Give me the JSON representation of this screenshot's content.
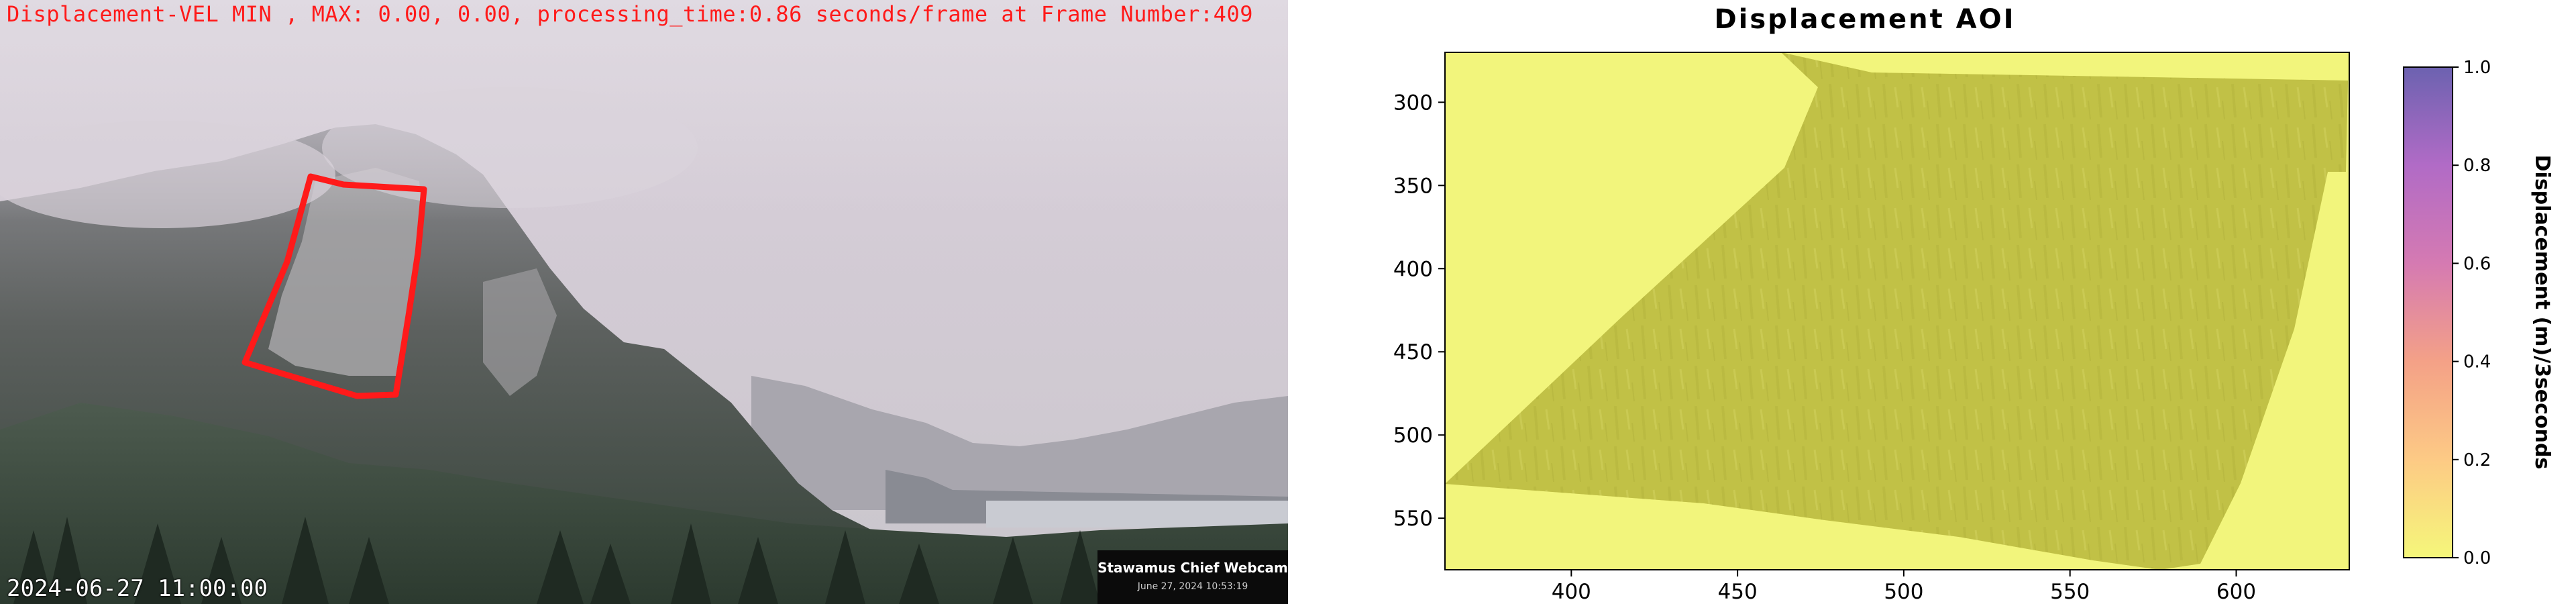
{
  "webcam": {
    "status_line": "Displacement-VEL MIN , MAX: 0.00, 0.00, processing_time:0.86 seconds/frame at Frame Number:409",
    "timestamp": "2024-06-27 11:00:00",
    "camera_name": "Stawamus Chief Webcam",
    "camera_date": "June 27, 2024 10:53:19",
    "roi_color": "#ff1a1a"
  },
  "plot": {
    "title": "Displacement AOI",
    "colorbar_label": "Displacement (m)/3seconds",
    "colors": {
      "background_field": "#f2f57c",
      "displacement_region": "#c2c246",
      "colormap": [
        "#f5f77a",
        "#fdca85",
        "#f4a187",
        "#d57ab2",
        "#b16bc6",
        "#6c62b0"
      ]
    }
  },
  "chart_data": {
    "type": "heatmap",
    "title": "Displacement AOI",
    "xlabel": "",
    "ylabel": "",
    "xlim": [
      362,
      634
    ],
    "ylim": [
      581,
      270
    ],
    "x_ticks": [
      "400",
      "450",
      "500",
      "550",
      "600"
    ],
    "y_ticks": [
      "300",
      "350",
      "400",
      "450",
      "500",
      "550"
    ],
    "colorbar": {
      "label": "Displacement (m)/3seconds",
      "range": [
        0.0,
        1.0
      ],
      "ticks": [
        "0.0",
        "0.2",
        "0.4",
        "0.6",
        "0.8",
        "1.0"
      ]
    },
    "values_shown": {
      "min": 0.0,
      "max": 0.0
    }
  }
}
